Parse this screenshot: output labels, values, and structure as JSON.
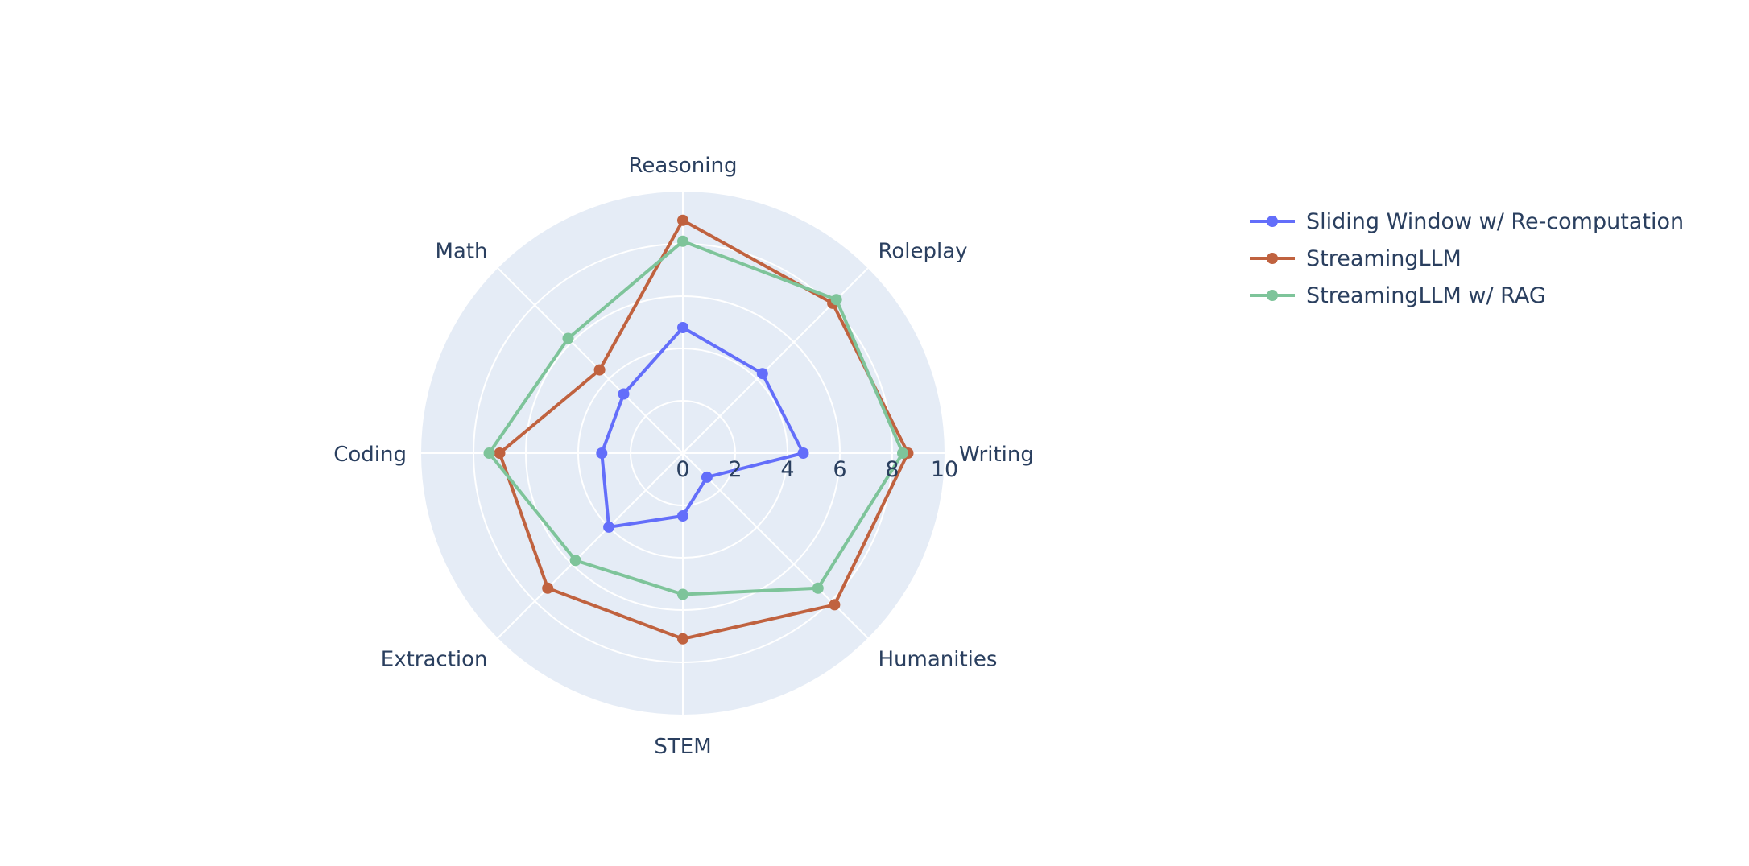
{
  "chart_data": {
    "type": "radar",
    "title": "",
    "categories": [
      "Writing",
      "Roleplay",
      "Reasoning",
      "Math",
      "Coding",
      "Extraction",
      "STEM",
      "Humanities"
    ],
    "radial_range": [
      0,
      10
    ],
    "radial_ticks": [
      "0",
      "2",
      "4",
      "6",
      "8",
      "10"
    ],
    "series": [
      {
        "name": "Sliding Window w/ Re-computation",
        "color": "#636efa",
        "values": [
          4.6,
          4.3,
          4.8,
          3.2,
          3.1,
          4.0,
          2.4,
          1.3
        ]
      },
      {
        "name": "StreamingLLM",
        "color": "#c0623f",
        "values": [
          8.6,
          8.1,
          8.9,
          4.5,
          7.0,
          7.3,
          7.1,
          8.2
        ]
      },
      {
        "name": "StreamingLLM w/ RAG",
        "color": "#7ec49a",
        "values": [
          8.4,
          8.3,
          8.1,
          6.2,
          7.4,
          5.8,
          5.4,
          7.3
        ]
      }
    ],
    "legend_position": "top-right",
    "grid": true
  }
}
